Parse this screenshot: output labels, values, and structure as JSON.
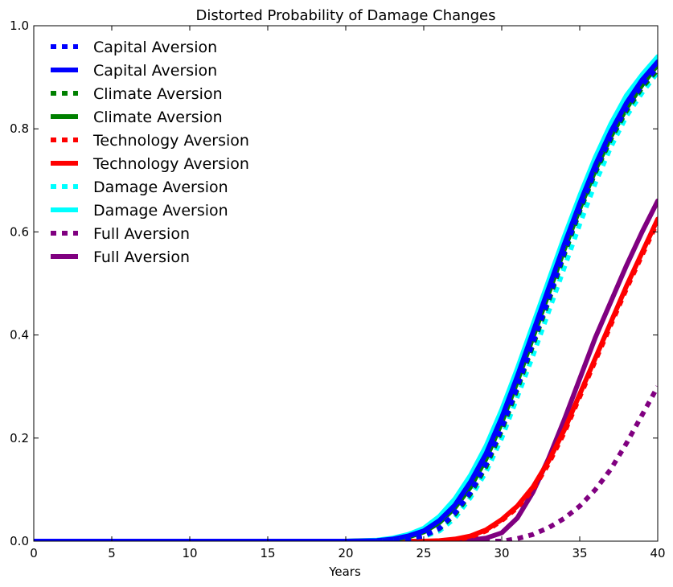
{
  "chart_data": {
    "type": "line",
    "title": "Distorted Probability of Damage Changes",
    "xlabel": "Years",
    "ylabel": "",
    "xlim": [
      0,
      40
    ],
    "ylim": [
      0,
      1
    ],
    "x_ticks": [
      0,
      5,
      10,
      15,
      20,
      25,
      30,
      35,
      40
    ],
    "y_ticks": [
      0.0,
      0.2,
      0.4,
      0.6,
      0.8,
      1.0
    ],
    "y_tick_labels": [
      "0.0",
      "0.2",
      "0.4",
      "0.6",
      "0.8",
      "1.0"
    ],
    "grid": false,
    "legend_position": "top-left",
    "x": [
      0,
      5,
      10,
      15,
      20,
      22,
      23,
      24,
      25,
      26,
      27,
      28,
      29,
      30,
      31,
      32,
      33,
      34,
      35,
      36,
      37,
      38,
      39,
      40
    ],
    "series": [
      {
        "name": "Capital Aversion",
        "style": "dotted",
        "color": "#0000ff",
        "values": [
          0,
          0,
          0,
          0,
          0,
          0,
          0.002,
          0.005,
          0.01,
          0.025,
          0.055,
          0.095,
          0.15,
          0.22,
          0.3,
          0.385,
          0.47,
          0.56,
          0.645,
          0.72,
          0.785,
          0.84,
          0.885,
          0.92
        ]
      },
      {
        "name": "Capital Aversion",
        "style": "solid",
        "color": "#0000ff",
        "values": [
          0,
          0,
          0,
          0,
          0,
          0.001,
          0.004,
          0.01,
          0.02,
          0.04,
          0.07,
          0.115,
          0.17,
          0.24,
          0.32,
          0.405,
          0.49,
          0.575,
          0.655,
          0.73,
          0.795,
          0.85,
          0.895,
          0.93
        ]
      },
      {
        "name": "Climate Aversion",
        "style": "dotted",
        "color": "#008000",
        "values": [
          0,
          0,
          0,
          0,
          0,
          0,
          0.002,
          0.005,
          0.01,
          0.024,
          0.052,
          0.092,
          0.145,
          0.215,
          0.295,
          0.38,
          0.465,
          0.555,
          0.64,
          0.715,
          0.78,
          0.835,
          0.88,
          0.915
        ]
      },
      {
        "name": "Climate Aversion",
        "style": "solid",
        "color": "#008000",
        "values": [
          0,
          0,
          0,
          0,
          0,
          0.001,
          0.003,
          0.008,
          0.018,
          0.036,
          0.065,
          0.105,
          0.16,
          0.23,
          0.31,
          0.395,
          0.48,
          0.565,
          0.645,
          0.72,
          0.785,
          0.84,
          0.885,
          0.925
        ]
      },
      {
        "name": "Technology Aversion",
        "style": "dotted",
        "color": "#ff0000",
        "values": [
          0,
          0,
          0,
          0,
          0,
          0,
          0,
          0,
          0,
          0,
          0.002,
          0.008,
          0.02,
          0.04,
          0.065,
          0.1,
          0.15,
          0.21,
          0.28,
          0.35,
          0.42,
          0.49,
          0.555,
          0.62
        ]
      },
      {
        "name": "Technology Aversion",
        "style": "solid",
        "color": "#ff0000",
        "values": [
          0,
          0,
          0,
          0,
          0,
          0,
          0,
          0,
          0,
          0.001,
          0.004,
          0.01,
          0.022,
          0.042,
          0.068,
          0.105,
          0.155,
          0.215,
          0.285,
          0.355,
          0.425,
          0.495,
          0.56,
          0.625
        ]
      },
      {
        "name": "Damage Aversion",
        "style": "dotted",
        "color": "#00ffff",
        "values": [
          0,
          0,
          0,
          0,
          0,
          0,
          0.002,
          0.004,
          0.009,
          0.02,
          0.045,
          0.085,
          0.135,
          0.2,
          0.28,
          0.36,
          0.445,
          0.53,
          0.615,
          0.695,
          0.765,
          0.825,
          0.87,
          0.91
        ]
      },
      {
        "name": "Damage Aversion",
        "style": "solid",
        "color": "#00ffff",
        "values": [
          0,
          0,
          0,
          0,
          0,
          0.002,
          0.006,
          0.013,
          0.025,
          0.048,
          0.082,
          0.128,
          0.185,
          0.255,
          0.335,
          0.42,
          0.505,
          0.59,
          0.67,
          0.745,
          0.81,
          0.865,
          0.905,
          0.94
        ]
      },
      {
        "name": "Full Aversion",
        "style": "dotted",
        "color": "#800080",
        "values": [
          0,
          0,
          0,
          0,
          0,
          0,
          0,
          0,
          0,
          0,
          0,
          0,
          0,
          0,
          0.005,
          0.013,
          0.026,
          0.044,
          0.068,
          0.1,
          0.14,
          0.19,
          0.245,
          0.3
        ]
      },
      {
        "name": "Full Aversion",
        "style": "solid",
        "color": "#800080",
        "values": [
          0,
          0,
          0,
          0,
          0,
          0,
          0,
          0,
          0,
          0,
          0,
          0.002,
          0.006,
          0.016,
          0.045,
          0.095,
          0.16,
          0.235,
          0.315,
          0.395,
          0.465,
          0.535,
          0.6,
          0.66
        ]
      }
    ]
  }
}
